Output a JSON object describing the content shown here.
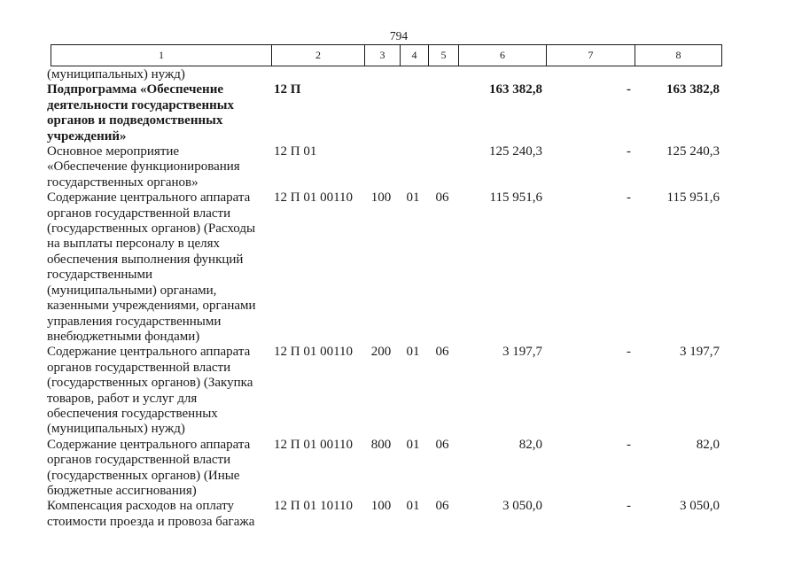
{
  "page_number": "794",
  "table": {
    "header": [
      "1",
      "2",
      "3",
      "4",
      "5",
      "6",
      "7",
      "8"
    ],
    "rows": [
      {
        "name": "(муниципальных) нужд)",
        "code": "",
        "c3": "",
        "c4": "",
        "c5": "",
        "c6": "",
        "c7": "",
        "c8": ""
      },
      {
        "name": "Подпрограмма «Обеспечение\nдеятельности государственных\nорганов и подведомственных\nучреждений»",
        "code": "12 П",
        "c3": "",
        "c4": "",
        "c5": "",
        "c6": "163 382,8",
        "c7": "-",
        "c8": "163 382,8"
      },
      {
        "name": "Основное мероприятие\n«Обеспечение функционирования\nгосударственных органов»",
        "code": "12 П 01",
        "c3": "",
        "c4": "",
        "c5": "",
        "c6": "125 240,3",
        "c7": "-",
        "c8": "125 240,3"
      },
      {
        "name": "Содержание центрального аппарата\nорганов государственной власти\n(государственных органов) (Расходы\nна выплаты персоналу в целях\nобеспечения выполнения функций\nгосударственными\n(муниципальными) органами,\nказенными учреждениями, органами\nуправления государственными\nвнебюджетными фондами)",
        "code": "12 П 01 00110",
        "c3": "100",
        "c4": "01",
        "c5": "06",
        "c6": "115 951,6",
        "c7": "-",
        "c8": "115 951,6"
      },
      {
        "name": "Содержание центрального аппарата\nорганов государственной власти\n(государственных органов) (Закупка\nтоваров, работ и услуг для\nобеспечения государственных\n(муниципальных) нужд)",
        "code": "12 П 01 00110",
        "c3": "200",
        "c4": "01",
        "c5": "06",
        "c6": "3 197,7",
        "c7": "-",
        "c8": "3 197,7"
      },
      {
        "name": "Содержание центрального аппарата\nорганов государственной власти\n(государственных органов) (Иные\nбюджетные ассигнования)",
        "code": "12 П 01 00110",
        "c3": "800",
        "c4": "01",
        "c5": "06",
        "c6": "82,0",
        "c7": "-",
        "c8": "82,0"
      },
      {
        "name": "Компенсация расходов на оплату\nстоимости проезда и провоза багажа",
        "code": "12 П 01 10110",
        "c3": "100",
        "c4": "01",
        "c5": "06",
        "c6": "3 050,0",
        "c7": "-",
        "c8": "3 050,0"
      }
    ]
  }
}
